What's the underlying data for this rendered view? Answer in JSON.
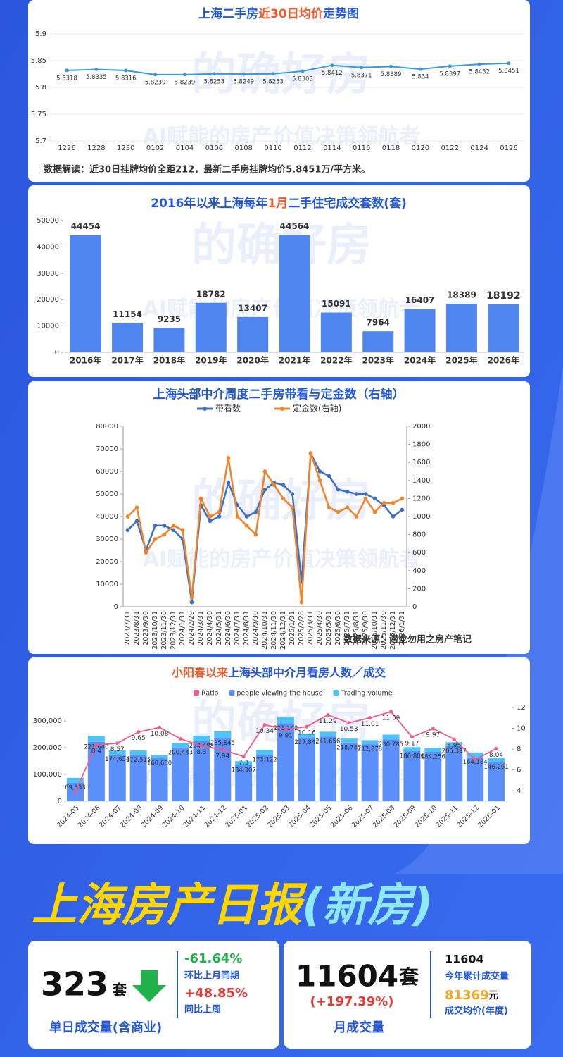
{
  "watermark": {
    "brand": "的确好房",
    "slogan": "AI赋能的房产价值决策领航者"
  },
  "chart_data": [
    {
      "type": "line",
      "title_parts": [
        "上海二手房",
        "近30日均价",
        "走势图"
      ],
      "title_colors": [
        "#2357d6",
        "#f0592a",
        "#2357d6"
      ],
      "categories": [
        "1226",
        "1228",
        "1230",
        "0102",
        "0104",
        "0106",
        "0108",
        "0110",
        "0112",
        "0114",
        "0116",
        "0118",
        "0120",
        "0122",
        "0124",
        "0126"
      ],
      "values": [
        5.8318,
        5.8335,
        5.8316,
        5.8239,
        5.8239,
        5.8253,
        5.8249,
        5.8253,
        5.8303,
        5.8412,
        5.8371,
        5.8389,
        5.834,
        5.8397,
        5.8432,
        5.8451
      ],
      "color": "#3a9ad9",
      "ylim": [
        5.7,
        5.9
      ],
      "yticks": [
        5.7,
        5.75,
        5.8,
        5.85,
        5.9
      ],
      "grid": true,
      "note": "数据解读：近30日挂牌均价全距212，最新二手房挂牌均价5.8451万/平方米。"
    },
    {
      "type": "bar",
      "title_parts": [
        "2016年以来上海每年",
        "1月",
        "二手住宅成交套数(套)"
      ],
      "title_colors": [
        "#2357d6",
        "#f0592a",
        "#2357d6"
      ],
      "categories": [
        "2016年",
        "2017年",
        "2018年",
        "2019年",
        "2020年",
        "2021年",
        "2022年",
        "2023年",
        "2024年",
        "2025年",
        "2026年"
      ],
      "values": [
        44454,
        11154,
        9235,
        18782,
        13407,
        44564,
        15091,
        7964,
        16407,
        18389,
        18192
      ],
      "color": "#4f86f0",
      "last_label_color": "#e53935",
      "ylim": [
        0,
        50000
      ],
      "yticks": [
        0,
        10000,
        20000,
        30000,
        40000,
        50000
      ]
    },
    {
      "type": "line",
      "title": "上海头部中介周度二手房带看与定金数（右轴）",
      "categories": [
        "2023/7/31",
        "2023/8/31",
        "2023/9/30",
        "2023/10/31",
        "2023/11/30",
        "2023/12/31",
        "2024/1/31",
        "2024/2/29",
        "2024/3/31",
        "2024/4/30",
        "2024/5/31",
        "2024/6/30",
        "2024/7/31",
        "2024/8/31",
        "2024/9/30",
        "2024/10/31",
        "2024/11/30",
        "2024/12/31",
        "2025/1/31",
        "2025/2/28",
        "2025/3/31",
        "2025/4/30",
        "2025/5/31",
        "2025/6/30",
        "2025/7/31",
        "2025/8/31",
        "2025/9/30",
        "2025/10/31",
        "2025/11/30",
        "2025/12/31",
        "2026/1/31"
      ],
      "series": [
        {
          "name": "带看数",
          "color": "#3f6fc4",
          "values": [
            34000,
            38000,
            25000,
            36000,
            36000,
            34000,
            30000,
            2000,
            45000,
            38000,
            40000,
            55000,
            45000,
            40000,
            42000,
            52000,
            55000,
            54000,
            50000,
            11000,
            68000,
            60000,
            58000,
            52000,
            51000,
            50000,
            50000,
            48000,
            45000,
            40000,
            43000
          ]
        },
        {
          "name": "定金数(右轴)",
          "color": "#f0842a",
          "axis": "y2",
          "values": [
            1000,
            1100,
            600,
            750,
            800,
            900,
            850,
            100,
            1200,
            1000,
            1050,
            1650,
            1000,
            900,
            800,
            1500,
            1350,
            1200,
            1100,
            50,
            1700,
            1400,
            1100,
            1050,
            1100,
            1000,
            1200,
            1050,
            1150,
            1150,
            1200
          ]
        }
      ],
      "ylim": [
        0,
        80000
      ],
      "yticks": [
        0,
        10000,
        20000,
        30000,
        40000,
        50000,
        60000,
        70000,
        80000
      ],
      "y2lim": [
        0,
        2000
      ],
      "y2ticks": [
        0,
        200,
        400,
        600,
        800,
        1000,
        1200,
        1400,
        1600,
        1800,
        2000
      ],
      "legend": "top",
      "source": "数据来源：潜龙勿用之房产笔记"
    },
    {
      "type": "combo",
      "title_parts": [
        "小阳春以来",
        "上海头部中介月看房人数／成交"
      ],
      "title_colors": [
        "#f0592a",
        "#2357d6"
      ],
      "categories": [
        "2024-05",
        "2024-06",
        "2024-07",
        "2024-08",
        "2024-09",
        "2024-10",
        "2024-11",
        "2024-12",
        "2025-01",
        "2025-02",
        "2025-03",
        "2025-04",
        "2025-05",
        "2025-06",
        "2025-07",
        "2025-08",
        "2025-09",
        "2025-10",
        "2025-11",
        "2025-12",
        "2026-01"
      ],
      "series": [
        {
          "name": "Ratio",
          "color": "#ef5b8e",
          "kind": "line",
          "axis": "y2",
          "values": [
            3.9,
            8.4,
            8.57,
            9.65,
            10.08,
            9.0,
            8.3,
            7.94,
            7.3,
            10.34,
            9.91,
            10.16,
            11.29,
            10.53,
            11.01,
            11.59,
            9.17,
            9.97,
            8.95,
            7.0,
            8.04
          ],
          "value_labels": [
            null,
            "8.4",
            "8.57",
            "9.65",
            "10.08",
            null,
            "8.3",
            "7.94",
            "7.3",
            "10.34",
            "9.91",
            "10.16",
            "11.29",
            "10.53",
            "11.01",
            "11.59",
            "9.17",
            "9.97",
            "8.95",
            null,
            "8.04"
          ]
        },
        {
          "name": "people viewing the house",
          "color": "#5b8ff9",
          "kind": "bar",
          "values": [
            69353,
            221640,
            174654,
            172515,
            160650,
            200443,
            224488,
            235845,
            134307,
            173122,
            291142,
            237841,
            241656,
            218787,
            212878,
            230785,
            186880,
            184256,
            205397,
            164184,
            146261
          ],
          "value_labels": [
            "69,353",
            "221,640",
            "174,654",
            "172,515",
            "160,650",
            "200,443",
            "224,488",
            "235,845",
            "134,307",
            "173,122",
            "291,142",
            "237,841",
            "241,656",
            "218,787",
            "212,878",
            "230,785",
            "186,880",
            "184,256",
            "205,397",
            "164,184",
            "146,261"
          ]
        },
        {
          "name": "Trading volume",
          "color": "#4fc3f7",
          "kind": "stack",
          "values": [
            18000,
            22000,
            15000,
            17000,
            12000,
            18000,
            20000,
            25000,
            15000,
            18000,
            25000,
            15000,
            18000,
            15000,
            15000,
            18000,
            15000,
            14000,
            15000,
            18000,
            15000
          ]
        }
      ],
      "ylim": [
        0,
        350000
      ],
      "yticks": [
        0,
        {
          "value": 100000,
          "label": "100,000"
        },
        {
          "value": 200000,
          "label": "200,000"
        },
        {
          "value": 300000,
          "label": "300,000"
        }
      ],
      "y2lim": [
        3,
        12
      ],
      "y2ticks": [
        4,
        6,
        8,
        10,
        12
      ],
      "legend": "top"
    }
  ],
  "report": {
    "title": "上海房产日报",
    "title_suffix": "(新房)",
    "daily": {
      "value": "323",
      "unit": "套",
      "mom": "-61.64%",
      "mom_label": "环比上月同期",
      "wow": "+48.85%",
      "wow_label": "同比上周",
      "label": "单日成交量(含商业)"
    },
    "monthly": {
      "value": "11604",
      "unit": "套",
      "change": "(+197.39%)",
      "label": "月成交量",
      "ytd": "11604",
      "ytd_label": "今年累计成交量",
      "avg_price": "81369",
      "avg_unit": "元",
      "avg_label": "成交均价(年度)"
    }
  }
}
